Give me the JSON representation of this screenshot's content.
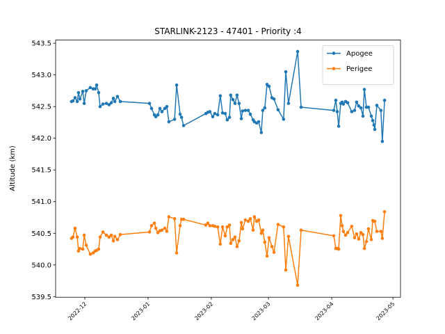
{
  "chart_data": {
    "type": "line",
    "title": "STARLINK-2123 - 47401 - Priority :4",
    "y_label": "Altitude (km)",
    "legend": "upper right",
    "marker": true,
    "x": [
      19320.5,
      19321.2,
      19322.2,
      19323.3,
      19323.9,
      19324.6,
      19326.0,
      19326.7,
      19327.7,
      19329.7,
      19331.1,
      19332.1,
      19332.8,
      19333.8,
      19334.5,
      19335.9,
      19337.6,
      19338.9,
      19340.0,
      19341.0,
      19341.7,
      19343.0,
      19344.4,
      19358.7,
      19359.7,
      19361.1,
      19361.8,
      19362.8,
      19363.8,
      19364.8,
      19366.2,
      19367.2,
      19368.2,
      19371.0,
      19372.0,
      19373.7,
      19374.4,
      19375.4,
      19386.3,
      19387.3,
      19388.3,
      19389.7,
      19390.7,
      19392.1,
      19393.4,
      19394.5,
      19395.8,
      19396.8,
      19397.9,
      19398.5,
      19399.6,
      19400.6,
      19401.6,
      19402.6,
      19403.7,
      19404.3,
      19405.7,
      19407.1,
      19408.1,
      19409.5,
      19410.1,
      19411.2,
      19412.2,
      19413.5,
      19414.2,
      19415.2,
      19416.3,
      19417.3,
      19418.7,
      19419.7,
      19421.7,
      19424.4,
      19425.5,
      19426.8,
      19431.3,
      19433.0,
      19449.0,
      19450.0,
      19450.7,
      19451.4,
      19452.4,
      19453.1,
      19453.7,
      19454.8,
      19455.8,
      19457.8,
      19459.2,
      19460.2,
      19461.2,
      19462.3,
      19463.3,
      19464.0,
      19465.0,
      19466.0,
      19467.4,
      19468.1,
      19468.7,
      19469.1,
      19470.1,
      19472.1,
      19472.8,
      19473.9
    ],
    "series": [
      {
        "name": "Apogee",
        "color": "#1f77b4",
        "values": [
          542.58,
          542.59,
          542.64,
          542.58,
          542.72,
          542.62,
          542.74,
          542.55,
          542.75,
          542.8,
          542.78,
          542.78,
          542.84,
          542.72,
          542.5,
          542.54,
          542.55,
          542.53,
          542.56,
          542.63,
          542.58,
          542.66,
          542.58,
          542.55,
          542.47,
          542.37,
          542.34,
          542.37,
          542.47,
          542.42,
          542.47,
          542.5,
          542.26,
          542.3,
          542.84,
          542.38,
          542.33,
          542.2,
          542.39,
          542.41,
          542.42,
          542.34,
          542.39,
          542.37,
          542.67,
          542.4,
          542.39,
          542.29,
          542.33,
          542.68,
          542.61,
          542.55,
          542.68,
          542.55,
          542.31,
          542.43,
          542.44,
          542.44,
          542.38,
          542.29,
          542.26,
          542.24,
          542.26,
          542.09,
          542.44,
          542.48,
          542.85,
          542.82,
          542.64,
          542.62,
          542.45,
          542.3,
          543.05,
          542.55,
          543.37,
          542.49,
          542.44,
          542.6,
          542.42,
          542.19,
          542.55,
          542.57,
          542.54,
          542.58,
          542.56,
          542.42,
          542.44,
          542.57,
          542.51,
          542.48,
          542.35,
          542.77,
          542.49,
          542.49,
          542.35,
          542.28,
          542.21,
          542.14,
          542.52,
          542.44,
          541.95,
          542.6
        ]
      },
      {
        "name": "Perigee",
        "color": "#ff7f0e",
        "values": [
          540.42,
          540.44,
          540.58,
          540.44,
          540.22,
          540.26,
          540.25,
          540.47,
          540.31,
          540.17,
          540.19,
          540.22,
          540.23,
          540.25,
          540.44,
          540.52,
          540.47,
          540.44,
          540.47,
          540.38,
          540.45,
          540.4,
          540.48,
          540.52,
          540.62,
          540.66,
          540.58,
          540.51,
          540.54,
          540.55,
          540.58,
          540.53,
          540.76,
          540.73,
          540.19,
          540.62,
          540.72,
          540.72,
          540.63,
          540.66,
          540.62,
          540.62,
          540.61,
          540.6,
          540.33,
          540.6,
          540.46,
          540.6,
          540.63,
          540.34,
          540.4,
          540.44,
          540.29,
          540.38,
          540.67,
          540.57,
          540.71,
          540.69,
          540.73,
          540.55,
          540.76,
          540.69,
          540.71,
          540.5,
          540.55,
          540.36,
          540.14,
          540.43,
          540.29,
          540.2,
          540.64,
          540.6,
          539.92,
          540.45,
          539.68,
          540.55,
          540.46,
          540.26,
          540.26,
          540.25,
          540.78,
          540.62,
          540.53,
          540.47,
          540.51,
          540.61,
          540.43,
          540.49,
          540.41,
          540.51,
          540.48,
          540.26,
          540.37,
          540.57,
          540.4,
          540.7,
          540.69,
          540.69,
          540.53,
          540.53,
          540.42,
          540.84
        ]
      }
    ],
    "xlim": [
      19312.7,
      19481.7
    ],
    "xticks": [
      {
        "value": 19327,
        "label": "2022-12"
      },
      {
        "value": 19358,
        "label": "2023-01"
      },
      {
        "value": 19389,
        "label": "2023-02"
      },
      {
        "value": 19417,
        "label": "2023-03"
      },
      {
        "value": 19448,
        "label": "2023-04"
      },
      {
        "value": 19478,
        "label": "2023-05"
      }
    ],
    "ylim": [
      539.49,
      543.55
    ],
    "yticks": [
      539.5,
      {
        "value": 540,
        "label": "540.0"
      },
      540.5,
      {
        "value": 541,
        "label": "541.0"
      },
      541.5,
      {
        "value": 542,
        "label": "542.0"
      },
      542.5,
      {
        "value": 543,
        "label": "543.0"
      },
      543.5
    ]
  }
}
